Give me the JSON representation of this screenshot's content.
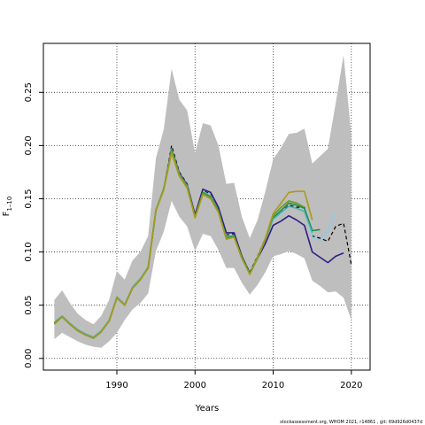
{
  "chart_data": {
    "type": "line",
    "xlabel": "Years",
    "ylabel": "F",
    "ylabel_sub": "1–10",
    "xlim": [
      1980.6,
      2022.4
    ],
    "ylim": [
      -0.011,
      0.296
    ],
    "xticks": [
      1990,
      2000,
      2010,
      2020
    ],
    "yticks": [
      0.0,
      0.05,
      0.1,
      0.15,
      0.2,
      0.25
    ],
    "ytick_labels": [
      "0.00",
      "0.05",
      "0.10",
      "0.15",
      "0.20",
      "0.25"
    ],
    "grid": "dotted",
    "legend": "none",
    "footer": "stockassessment.org, WHOM 2021, r14861 , git: 69d926d0437d",
    "band": {
      "color": "#bebebe",
      "x": [
        1982,
        1983,
        1984,
        1985,
        1986,
        1987,
        1988,
        1989,
        1990,
        1991,
        1992,
        1993,
        1994,
        1995,
        1996,
        1997,
        1998,
        1999,
        2000,
        2001,
        2002,
        2003,
        2004,
        2005,
        2006,
        2007,
        2008,
        2009,
        2010,
        2011,
        2012,
        2013,
        2014,
        2015,
        2016,
        2017,
        2018,
        2019,
        2020
      ],
      "upper": [
        0.055,
        0.064,
        0.052,
        0.042,
        0.036,
        0.032,
        0.04,
        0.055,
        0.082,
        0.074,
        0.092,
        0.1,
        0.115,
        0.188,
        0.215,
        0.272,
        0.243,
        0.233,
        0.193,
        0.221,
        0.219,
        0.2,
        0.164,
        0.165,
        0.133,
        0.113,
        0.13,
        0.157,
        0.187,
        0.198,
        0.211,
        0.212,
        0.216,
        0.183,
        0.19,
        0.197,
        0.24,
        0.285,
        0.21
      ],
      "lower": [
        0.018,
        0.024,
        0.02,
        0.016,
        0.013,
        0.011,
        0.01,
        0.016,
        0.024,
        0.036,
        0.046,
        0.052,
        0.061,
        0.101,
        0.119,
        0.148,
        0.133,
        0.124,
        0.101,
        0.117,
        0.115,
        0.102,
        0.085,
        0.085,
        0.071,
        0.06,
        0.069,
        0.081,
        0.096,
        0.098,
        0.101,
        0.098,
        0.094,
        0.073,
        0.068,
        0.062,
        0.063,
        0.057,
        0.036
      ]
    },
    "series": [
      {
        "color": "#000000",
        "dashed": true,
        "width": 1.2,
        "x": [
          1982,
          1983,
          1984,
          1985,
          1986,
          1987,
          1988,
          1989,
          1990,
          1991,
          1992,
          1993,
          1994,
          1995,
          1996,
          1997,
          1998,
          1999,
          2000,
          2001,
          2002,
          2003,
          2004,
          2005,
          2006,
          2007,
          2008,
          2009,
          2010,
          2011,
          2012,
          2013,
          2014,
          2015,
          2016,
          2017,
          2018,
          2019,
          2020
        ],
        "values": [
          0.033,
          0.039,
          0.032,
          0.026,
          0.022,
          0.019,
          0.025,
          0.035,
          0.057,
          0.05,
          0.066,
          0.074,
          0.085,
          0.139,
          0.159,
          0.2,
          0.175,
          0.164,
          0.135,
          0.158,
          0.154,
          0.141,
          0.116,
          0.117,
          0.096,
          0.081,
          0.096,
          0.113,
          0.131,
          0.137,
          0.144,
          0.142,
          0.142,
          0.115,
          0.113,
          0.11,
          0.124,
          0.127,
          0.088
        ]
      },
      {
        "color": "#87ceeb",
        "dashed": false,
        "width": 1.4,
        "x": [
          1982,
          1983,
          1984,
          1985,
          1986,
          1987,
          1988,
          1989,
          1990,
          1991,
          1992,
          1993,
          1994,
          1995,
          1996,
          1997,
          1998,
          1999,
          2000,
          2001,
          2002,
          2003,
          2004,
          2005,
          2006,
          2007,
          2008,
          2009,
          2010,
          2011,
          2012,
          2013,
          2014,
          2015,
          2016,
          2017,
          2018
        ],
        "values": [
          0.033,
          0.039,
          0.032,
          0.026,
          0.022,
          0.019,
          0.025,
          0.035,
          0.057,
          0.05,
          0.066,
          0.074,
          0.085,
          0.139,
          0.159,
          0.197,
          0.174,
          0.163,
          0.133,
          0.157,
          0.153,
          0.14,
          0.115,
          0.116,
          0.095,
          0.08,
          0.095,
          0.112,
          0.13,
          0.136,
          0.143,
          0.141,
          0.139,
          0.114,
          0.111,
          0.12,
          0.137
        ]
      },
      {
        "color": "#2e1f85",
        "dashed": false,
        "width": 1.6,
        "x": [
          1982,
          1983,
          1984,
          1985,
          1986,
          1987,
          1988,
          1989,
          1990,
          1991,
          1992,
          1993,
          1994,
          1995,
          1996,
          1997,
          1998,
          1999,
          2000,
          2001,
          2002,
          2003,
          2004,
          2005,
          2006,
          2007,
          2008,
          2009,
          2010,
          2011,
          2012,
          2013,
          2014,
          2015,
          2016,
          2017,
          2018,
          2019
        ],
        "values": [
          0.033,
          0.039,
          0.032,
          0.026,
          0.022,
          0.019,
          0.025,
          0.035,
          0.057,
          0.05,
          0.066,
          0.074,
          0.085,
          0.139,
          0.159,
          0.196,
          0.174,
          0.163,
          0.135,
          0.159,
          0.156,
          0.142,
          0.118,
          0.118,
          0.096,
          0.08,
          0.094,
          0.108,
          0.125,
          0.129,
          0.134,
          0.13,
          0.125,
          0.1,
          0.095,
          0.09,
          0.096,
          0.099
        ]
      },
      {
        "color": "#1b8e4a",
        "dashed": false,
        "width": 1.6,
        "x": [
          1982,
          1983,
          1984,
          1985,
          1986,
          1987,
          1988,
          1989,
          1990,
          1991,
          1992,
          1993,
          1994,
          1995,
          1996,
          1997,
          1998,
          1999,
          2000,
          2001,
          2002,
          2003,
          2004,
          2005,
          2006,
          2007,
          2008,
          2009,
          2010,
          2011,
          2012,
          2013,
          2014,
          2015,
          2016
        ],
        "values": [
          0.033,
          0.039,
          0.032,
          0.026,
          0.022,
          0.019,
          0.025,
          0.035,
          0.057,
          0.05,
          0.066,
          0.074,
          0.085,
          0.139,
          0.159,
          0.196,
          0.173,
          0.162,
          0.133,
          0.156,
          0.152,
          0.139,
          0.114,
          0.115,
          0.095,
          0.08,
          0.095,
          0.112,
          0.132,
          0.139,
          0.146,
          0.144,
          0.141,
          0.12,
          0.121
        ]
      },
      {
        "color": "#4ab0a8",
        "dashed": false,
        "width": 1.4,
        "x": [
          1982,
          1983,
          1984,
          1985,
          1986,
          1987,
          1988,
          1989,
          1990,
          1991,
          1992,
          1993,
          1994,
          1995,
          1996,
          1997,
          1998,
          1999,
          2000,
          2001,
          2002,
          2003,
          2004,
          2005,
          2006,
          2007,
          2008,
          2009,
          2010,
          2011,
          2012,
          2013,
          2014,
          2015
        ],
        "values": [
          0.034,
          0.04,
          0.033,
          0.027,
          0.023,
          0.02,
          0.026,
          0.036,
          0.058,
          0.051,
          0.067,
          0.075,
          0.086,
          0.14,
          0.16,
          0.195,
          0.173,
          0.162,
          0.133,
          0.155,
          0.151,
          0.138,
          0.113,
          0.114,
          0.094,
          0.079,
          0.094,
          0.111,
          0.131,
          0.137,
          0.143,
          0.141,
          0.138,
          0.118
        ]
      },
      {
        "color": "#6b9b1f",
        "dashed": false,
        "width": 1.6,
        "x": [
          1982,
          1983,
          1984,
          1985,
          1986,
          1987,
          1988,
          1989,
          1990,
          1991,
          1992,
          1993,
          1994,
          1995,
          1996,
          1997,
          1998,
          1999,
          2000,
          2001,
          2002,
          2003,
          2004,
          2005,
          2006,
          2007,
          2008,
          2009,
          2010,
          2011,
          2012,
          2013,
          2014
        ],
        "values": [
          0.033,
          0.039,
          0.032,
          0.026,
          0.022,
          0.019,
          0.025,
          0.035,
          0.057,
          0.05,
          0.066,
          0.074,
          0.085,
          0.139,
          0.159,
          0.195,
          0.172,
          0.161,
          0.133,
          0.155,
          0.151,
          0.138,
          0.113,
          0.114,
          0.094,
          0.079,
          0.094,
          0.112,
          0.134,
          0.142,
          0.148,
          0.146,
          0.142
        ]
      },
      {
        "color": "#a89a1a",
        "dashed": false,
        "width": 1.6,
        "x": [
          1982,
          1983,
          1984,
          1985,
          1986,
          1987,
          1988,
          1989,
          1990,
          1991,
          1992,
          1993,
          1994,
          1995,
          1996,
          1997,
          1998,
          1999,
          2000,
          2001,
          2002,
          2003,
          2004,
          2005,
          2006,
          2007,
          2008,
          2009,
          2010,
          2011,
          2012,
          2013,
          2014,
          2015
        ],
        "values": [
          0.032,
          0.039,
          0.032,
          0.026,
          0.022,
          0.019,
          0.025,
          0.035,
          0.057,
          0.05,
          0.066,
          0.074,
          0.085,
          0.139,
          0.158,
          0.193,
          0.171,
          0.16,
          0.132,
          0.154,
          0.15,
          0.137,
          0.112,
          0.114,
          0.094,
          0.079,
          0.095,
          0.113,
          0.136,
          0.146,
          0.156,
          0.157,
          0.157,
          0.13
        ]
      }
    ]
  }
}
